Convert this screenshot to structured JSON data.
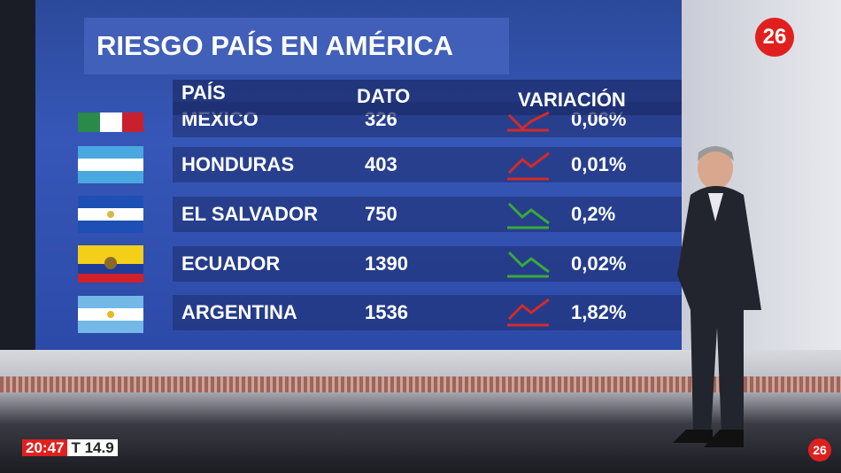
{
  "header": {
    "title": "RIESGO PAÍS EN AMÉRICA"
  },
  "table": {
    "columns": [
      "PAÍS",
      "DATO",
      "VARIACIÓN"
    ],
    "rows": [
      [
        "MEXICO",
        "326",
        "0,06%"
      ],
      [
        "HONDURAS",
        "403",
        "0,01%"
      ],
      [
        "EL SALVADOR",
        "750",
        "0,2%"
      ],
      [
        "ECUADOR",
        "1390",
        "0,02%"
      ],
      [
        "ARGENTINA",
        "1536",
        "1,82%"
      ]
    ]
  },
  "overlay": {
    "logo": "26",
    "time": "20:47",
    "temperature": "T 14.9",
    "corner_logo": "26"
  }
}
